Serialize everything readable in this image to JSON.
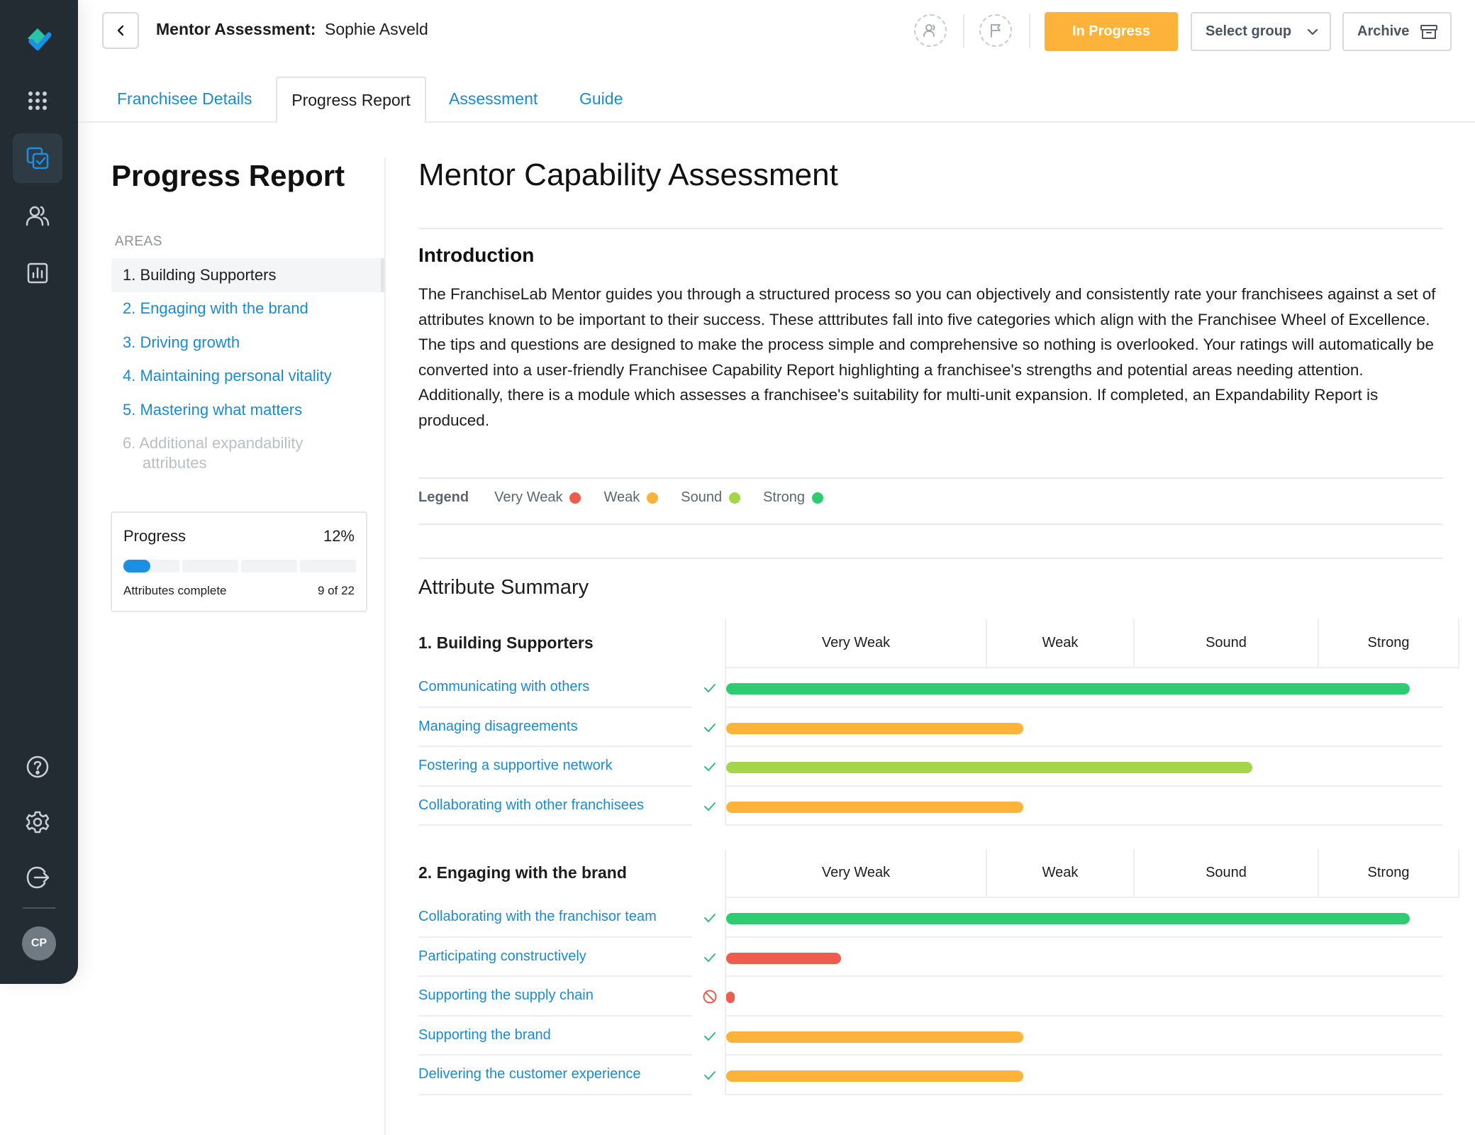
{
  "header": {
    "title": "Mentor Assessment:",
    "name": "Sophie Asveld",
    "status": "In Progress",
    "select_group": "Select group",
    "archive": "Archive"
  },
  "sidebar": {
    "avatar": "CP",
    "icons": [
      "logo-icon",
      "apps-grid-icon",
      "assessments-icon",
      "users-icon",
      "reports-icon",
      "help-icon",
      "settings-icon",
      "logout-icon"
    ]
  },
  "tabs": [
    {
      "label": "Franchisee Details"
    },
    {
      "label": "Progress Report"
    },
    {
      "label": "Assessment"
    },
    {
      "label": "Guide"
    }
  ],
  "left": {
    "title": "Progress Report",
    "areas_label": "AREAS",
    "areas": [
      {
        "label": "1. Building Supporters"
      },
      {
        "label": "2. Engaging with the brand"
      },
      {
        "label": "3. Driving growth"
      },
      {
        "label": "4. Maintaining personal vitality"
      },
      {
        "label": "5. Mastering what matters"
      },
      {
        "label": "6. Additional expandability",
        "label2": "attributes"
      }
    ],
    "progress": {
      "label": "Progress",
      "percent": "12%",
      "fraction": 0.12,
      "footer_label": "Attributes complete",
      "footer_count": "9 of 22"
    }
  },
  "main": {
    "title": "Mentor Capability Assessment",
    "intro_title": "Introduction",
    "intro_text": "The FranchiseLab Mentor guides you through a structured process so you can objectively and consistently rate your franchisees against a set of attributes known to be important to their success. These atttributes fall into five categories which align with the Franchisee Wheel of Excellence. The tips and questions are designed to make the process simple and comprehensive so nothing is overlooked. Your ratings will automatically be converted into a user-friendly Franchisee Capability Report highlighting a franchisee's strengths and potential areas needing attention. Additionally, there is a module which assesses a franchisee's suitability for multi-unit expansion. If completed, an Expandability Report is produced.",
    "legend": {
      "title": "Legend",
      "items": [
        {
          "label": "Very Weak",
          "color": "#ee5c4d"
        },
        {
          "label": "Weak",
          "color": "#fdb33a"
        },
        {
          "label": "Sound",
          "color": "#a3d64a"
        },
        {
          "label": "Strong",
          "color": "#2ecc71"
        }
      ]
    },
    "summary_title": "Attribute Summary",
    "columns": [
      "Very Weak",
      "Weak",
      "Sound",
      "Strong"
    ],
    "sections": [
      {
        "title": "1. Building Supporters",
        "rows": [
          {
            "label": "Communicating with others",
            "status": "check",
            "rating": "Strong",
            "level": 1.0
          },
          {
            "label": "Managing disagreements",
            "status": "check",
            "rating": "Weak",
            "level": 0.435
          },
          {
            "label": "Fostering a supportive network",
            "status": "check",
            "rating": "Sound",
            "level": 0.77
          },
          {
            "label": "Collaborating with other franchisees",
            "status": "check",
            "rating": "Weak",
            "level": 0.435
          }
        ]
      },
      {
        "title": "2. Engaging with the brand",
        "rows": [
          {
            "label": "Collaborating with the franchisor team",
            "status": "check",
            "rating": "Strong",
            "level": 1.0
          },
          {
            "label": "Participating constructively",
            "status": "check",
            "rating": "Very Weak",
            "level": 0.168
          },
          {
            "label": "Supporting the supply chain",
            "status": "blocked",
            "rating": "Very Weak",
            "level": 0.012
          },
          {
            "label": "Supporting the brand",
            "status": "check",
            "rating": "Weak",
            "level": 0.435
          },
          {
            "label": "Delivering the customer experience",
            "status": "check",
            "rating": "Weak",
            "level": 0.435
          }
        ]
      }
    ]
  }
}
